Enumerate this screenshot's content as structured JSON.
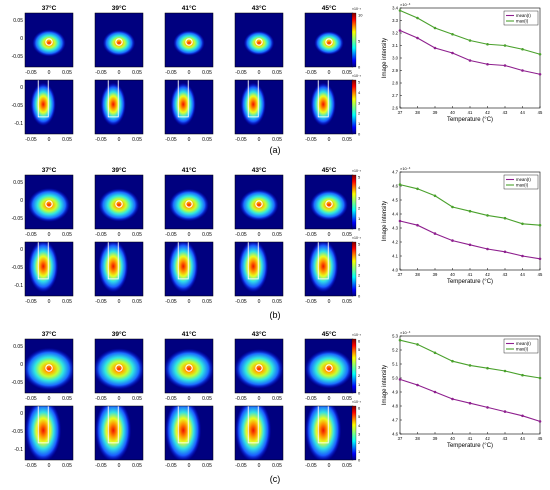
{
  "figure": {
    "panels": [
      {
        "label": "(a)"
      },
      {
        "label": "(b)"
      },
      {
        "label": "(c)"
      }
    ],
    "map_titles": [
      "37°C",
      "39°C",
      "41°C",
      "43°C",
      "45°C"
    ],
    "map_x_ticks": [
      "-0.05",
      "0",
      "0.05"
    ],
    "map_y_ticks_top": [
      "0.05",
      "0",
      "-0.05"
    ],
    "map_y_ticks_bottom": [
      "0",
      "-0.05",
      "-0.1"
    ],
    "colorbars": [
      {
        "exponent": "×10⁻³",
        "top": [
          "10",
          "5",
          "0"
        ],
        "bottom": [
          "5",
          "4",
          "3",
          "2",
          "1",
          "0"
        ]
      },
      {
        "exponent": "×10⁻³",
        "top": [
          "5",
          "4",
          "3",
          "2",
          "1",
          "0"
        ],
        "bottom": [
          "5",
          "4",
          "3",
          "2",
          "1",
          "0"
        ]
      },
      {
        "exponent": "×10⁻³",
        "top": [
          "6",
          "5",
          "4",
          "3",
          "2",
          "1",
          "0"
        ],
        "bottom": [
          "6",
          "5",
          "4",
          "3",
          "2",
          "1",
          "0"
        ]
      }
    ],
    "colors": {
      "mean": "#8e1f8e",
      "max": "#4aa12c",
      "hot": "#cc1010",
      "cold": "#00007f"
    }
  },
  "chart_data": [
    {
      "type": "line",
      "panel": "(a)",
      "xlabel": "Temperature (°C)",
      "ylabel": "Image intensity",
      "exponent_label": "×10⁻³",
      "x": [
        37,
        38,
        39,
        40,
        41,
        42,
        43,
        44,
        45
      ],
      "xlim": [
        37,
        45
      ],
      "ylim": [
        2.6,
        3.4
      ],
      "yticks": [
        2.6,
        2.7,
        2.8,
        2.9,
        3.0,
        3.1,
        3.2,
        3.3,
        3.4
      ],
      "legend": "top-right",
      "series": [
        {
          "name": "mean(I)",
          "values": [
            3.22,
            3.16,
            3.08,
            3.04,
            2.98,
            2.95,
            2.94,
            2.9,
            2.87
          ]
        },
        {
          "name": "max(I)",
          "values": [
            3.38,
            3.32,
            3.24,
            3.19,
            3.14,
            3.11,
            3.1,
            3.07,
            3.03
          ]
        }
      ]
    },
    {
      "type": "line",
      "panel": "(b)",
      "xlabel": "Temperature (°C)",
      "ylabel": "Image intensity",
      "exponent_label": "×10⁻³",
      "x": [
        37,
        38,
        39,
        40,
        41,
        42,
        43,
        44,
        45
      ],
      "xlim": [
        37,
        45
      ],
      "ylim": [
        4.0,
        4.7
      ],
      "yticks": [
        4.0,
        4.1,
        4.2,
        4.3,
        4.4,
        4.5,
        4.6,
        4.7
      ],
      "legend": "top-right",
      "series": [
        {
          "name": "mean(I)",
          "values": [
            4.35,
            4.32,
            4.26,
            4.21,
            4.18,
            4.15,
            4.13,
            4.1,
            4.08
          ]
        },
        {
          "name": "max(I)",
          "values": [
            4.61,
            4.58,
            4.53,
            4.45,
            4.42,
            4.39,
            4.37,
            4.33,
            4.32
          ]
        }
      ]
    },
    {
      "type": "line",
      "panel": "(c)",
      "xlabel": "Temperature (°C)",
      "ylabel": "Image intensity",
      "exponent_label": "×10⁻³",
      "x": [
        37,
        38,
        39,
        40,
        41,
        42,
        43,
        44,
        45
      ],
      "xlim": [
        37,
        45
      ],
      "ylim": [
        4.6,
        5.3
      ],
      "yticks": [
        4.6,
        4.7,
        4.8,
        4.9,
        5.0,
        5.1,
        5.2,
        5.3
      ],
      "legend": "top-right",
      "series": [
        {
          "name": "mean(I)",
          "values": [
            4.99,
            4.95,
            4.9,
            4.85,
            4.82,
            4.79,
            4.76,
            4.73,
            4.69
          ]
        },
        {
          "name": "max(I)",
          "values": [
            5.27,
            5.24,
            5.18,
            5.12,
            5.09,
            5.07,
            5.05,
            5.02,
            5.0
          ]
        }
      ]
    }
  ]
}
